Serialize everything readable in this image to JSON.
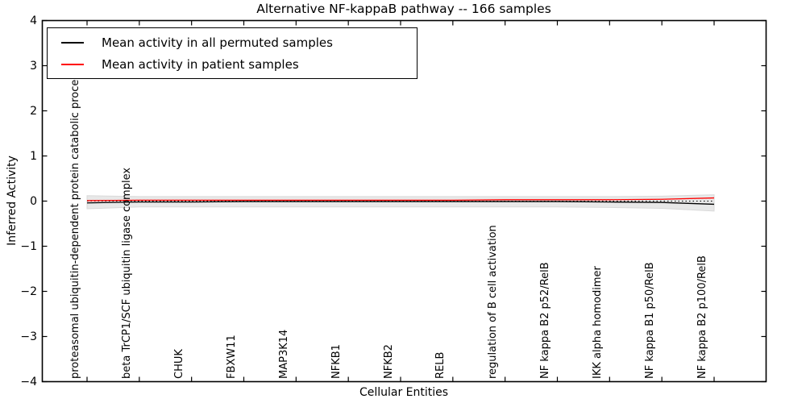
{
  "chart_data": {
    "type": "line",
    "title": "Alternative NF-kappaB pathway -- 166 samples",
    "xlabel": "Cellular Entities",
    "ylabel": "Inferred Activity",
    "ylim": [
      -4,
      4
    ],
    "yticks": [
      -4,
      -3,
      -2,
      -1,
      0,
      1,
      2,
      3,
      4
    ],
    "ytick_labels": [
      "−4",
      "−3",
      "−2",
      "−1",
      "0",
      "1",
      "2",
      "3",
      "4"
    ],
    "grid": false,
    "legend_position": "upper left",
    "categories": [
      "proteasomal ubiquitin-dependent protein catabolic process",
      "beta TrCP1/SCF ubiquitin ligase complex",
      "CHUK",
      "FBXW11",
      "MAP3K14",
      "NFKB1",
      "NFKB2",
      "RELB",
      "regulation of B cell activation",
      "NF kappa B2 p52/RelB",
      "IKK alpha homodimer",
      "NF kappa B1 p50/RelB",
      "NF kappa B2 p100/RelB"
    ],
    "series": [
      {
        "name": "Mean activity in all permuted samples",
        "color": "#000000",
        "values": [
          -0.04,
          -0.02,
          -0.02,
          -0.01,
          -0.01,
          -0.01,
          -0.01,
          -0.01,
          -0.01,
          -0.01,
          -0.02,
          -0.03,
          -0.07
        ]
      },
      {
        "name": "Mean activity in patient samples",
        "color": "#ff0000",
        "values": [
          0.01,
          0.02,
          0.02,
          0.02,
          0.02,
          0.02,
          0.02,
          0.02,
          0.03,
          0.03,
          0.03,
          0.04,
          0.07
        ]
      }
    ],
    "band": {
      "name": "permuted-samples-spread-band",
      "color": "#e8e8e8",
      "edge_color": "#d9d9d9",
      "upper": [
        0.12,
        0.1,
        0.1,
        0.1,
        0.1,
        0.1,
        0.1,
        0.1,
        0.1,
        0.1,
        0.1,
        0.11,
        0.14
      ],
      "lower": [
        -0.17,
        -0.13,
        -0.13,
        -0.13,
        -0.13,
        -0.13,
        -0.13,
        -0.13,
        -0.13,
        -0.13,
        -0.14,
        -0.16,
        -0.22
      ]
    },
    "zero_line": {
      "y": 0,
      "style": "dotted",
      "color": "#000000"
    }
  }
}
